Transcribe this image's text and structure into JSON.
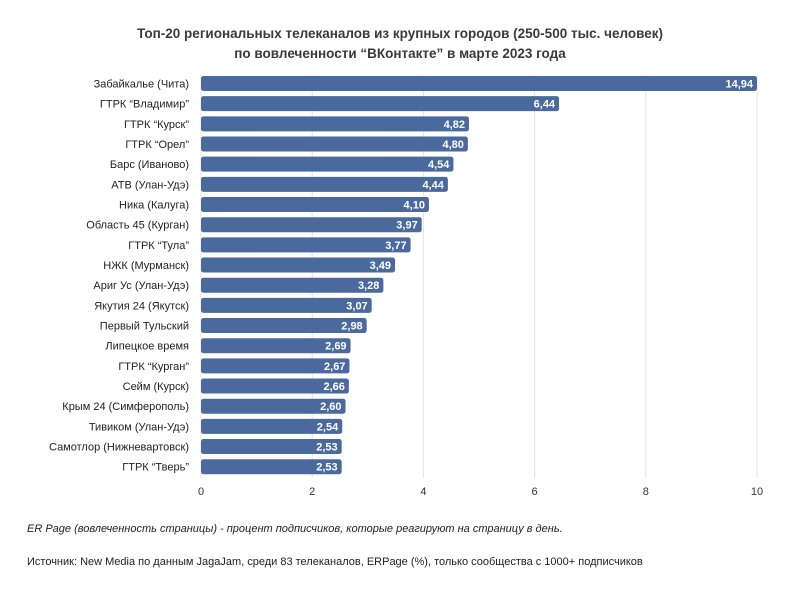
{
  "chart_data": {
    "type": "bar",
    "orientation": "horizontal",
    "title_line1": "Топ-20 региональных телеканалов из крупных городов (250-500 тыс. человек)",
    "title_line2": "по вовлеченности “ВКонтакте” в марте 2023 года",
    "categories": [
      "Забайкалье (Чита)",
      "ГТРК “Владимир”",
      "ГТРК “Курск”",
      "ГТРК “Орел”",
      "Барс (Иваново)",
      "АТВ (Улан-Удэ)",
      "Ника (Калуга)",
      "Область 45 (Курган)",
      "ГТРК “Тула”",
      "НЖК (Мурманск)",
      "Ариг Ус (Улан-Удэ)",
      "Якутия 24 (Якутск)",
      "Первый Тульский",
      "Липецкое время",
      "ГТРК “Курган”",
      "Сейм (Курск)",
      "Крым 24 (Симферополь)",
      "Тивиком (Улан-Удэ)",
      "Самотлор (Нижневартовск)",
      "ГТРК “Тверь”"
    ],
    "values": [
      14.94,
      6.44,
      4.82,
      4.8,
      4.54,
      4.44,
      4.1,
      3.97,
      3.77,
      3.49,
      3.28,
      3.07,
      2.98,
      2.69,
      2.67,
      2.66,
      2.6,
      2.54,
      2.53,
      2.53
    ],
    "value_labels": [
      "14,94",
      "6,44",
      "4,82",
      "4,80",
      "4,54",
      "4,44",
      "4,10",
      "3,97",
      "3,77",
      "3,49",
      "3,28",
      "3,07",
      "2,98",
      "2,69",
      "2,67",
      "2,66",
      "2,60",
      "2,54",
      "2,53",
      "2,53"
    ],
    "xlim": [
      0,
      10
    ],
    "x_ticks": [
      0,
      2,
      4,
      6,
      8,
      10
    ],
    "x_tick_labels": [
      "0",
      "2",
      "4",
      "6",
      "8",
      "10"
    ],
    "bar_color": "#4a6a9d",
    "label_color": "#ffffff",
    "grid": "vertical",
    "grid_color": "#e3e3e3"
  },
  "footnote": "ER Page (вовлеченность страницы) - процент подписчиков, которые реагируют на страницу в день.",
  "source": "Источник: New Media по данным JagaJam, среди 83 телеканалов, ERPage (%), только сообщества с 1000+ подписчиков"
}
